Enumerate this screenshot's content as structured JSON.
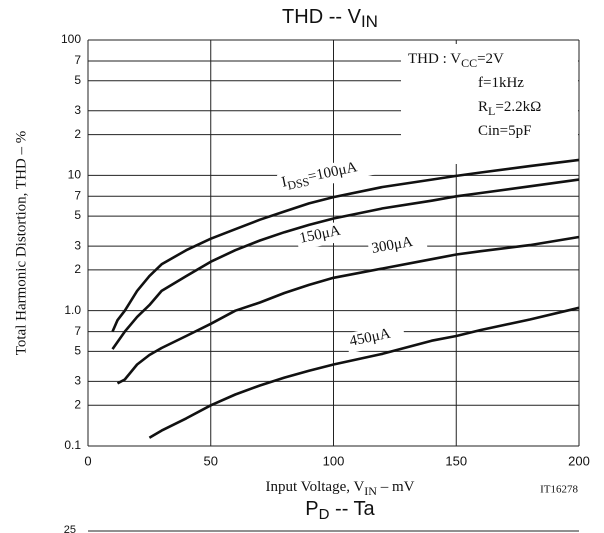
{
  "chart_data": {
    "type": "line",
    "title": [
      "THD -- V",
      "IN"
    ],
    "x_label": [
      "Input Voltage, V",
      "IN",
      " – mV"
    ],
    "y_label": "Total Harmonic Distortion, THD – %",
    "code": "IT16278",
    "log_y": true,
    "grid": true,
    "xlim": [
      0,
      200
    ],
    "xticks": [
      0,
      50,
      100,
      150,
      200
    ],
    "ylim": [
      0.1,
      100
    ],
    "yticks": [
      100,
      {
        "value": 70,
        "label": "7"
      },
      {
        "value": 50,
        "label": "5"
      },
      {
        "value": 30,
        "label": "3"
      },
      {
        "value": 20,
        "label": "2"
      },
      10,
      7,
      5,
      3,
      2,
      {
        "value": 1,
        "label": "1.0"
      },
      {
        "value": 0.7,
        "label": "7"
      },
      {
        "value": 0.5,
        "label": "5"
      },
      {
        "value": 0.3,
        "label": "3"
      },
      {
        "value": 0.2,
        "label": "2"
      },
      0.1
    ],
    "conditions": [
      [
        "THD :  V",
        "CC",
        "=2V"
      ],
      [
        "f=1kHz"
      ],
      [
        "R",
        "L",
        "=2.2kΩ"
      ],
      [
        "Cin=5pF"
      ]
    ],
    "series": [
      {
        "name": [
          "I",
          "DSS",
          "=100μA"
        ],
        "color": "#111111",
        "x": [
          10,
          12,
          15,
          20,
          25,
          30,
          40,
          50,
          60,
          70,
          80,
          90,
          100,
          120,
          140,
          150,
          160,
          180,
          200
        ],
        "values": [
          0.7,
          0.85,
          1.0,
          1.4,
          1.8,
          2.2,
          2.8,
          3.4,
          4.0,
          4.7,
          5.4,
          6.2,
          6.9,
          8.2,
          9.3,
          9.9,
          10.5,
          11.7,
          13
        ]
      },
      {
        "name": [
          "150μA"
        ],
        "color": "#111111",
        "x": [
          10,
          15,
          20,
          25,
          30,
          40,
          50,
          60,
          70,
          80,
          90,
          100,
          120,
          140,
          150,
          160,
          180,
          200
        ],
        "values": [
          0.52,
          0.7,
          0.9,
          1.1,
          1.4,
          1.8,
          2.3,
          2.8,
          3.3,
          3.8,
          4.3,
          4.8,
          5.7,
          6.5,
          7.0,
          7.4,
          8.3,
          9.3
        ]
      },
      {
        "name": [
          "300μA"
        ],
        "color": "#111111",
        "x": [
          12,
          15,
          20,
          25,
          30,
          40,
          50,
          60,
          70,
          80,
          90,
          100,
          120,
          140,
          150,
          160,
          180,
          200
        ],
        "values": [
          0.29,
          0.31,
          0.4,
          0.47,
          0.53,
          0.65,
          0.8,
          1.0,
          1.15,
          1.35,
          1.55,
          1.75,
          2.05,
          2.4,
          2.6,
          2.75,
          3.05,
          3.5
        ]
      },
      {
        "name": [
          "450μA"
        ],
        "color": "#111111",
        "x": [
          25,
          30,
          40,
          50,
          60,
          70,
          80,
          90,
          100,
          120,
          140,
          150,
          160,
          180,
          200
        ],
        "values": [
          0.115,
          0.13,
          0.16,
          0.2,
          0.24,
          0.28,
          0.32,
          0.36,
          0.4,
          0.48,
          0.6,
          0.65,
          0.72,
          0.86,
          1.05
        ]
      }
    ]
  },
  "next_chart": {
    "title": [
      "P",
      "D",
      " -- Ta"
    ],
    "tick": "25"
  }
}
